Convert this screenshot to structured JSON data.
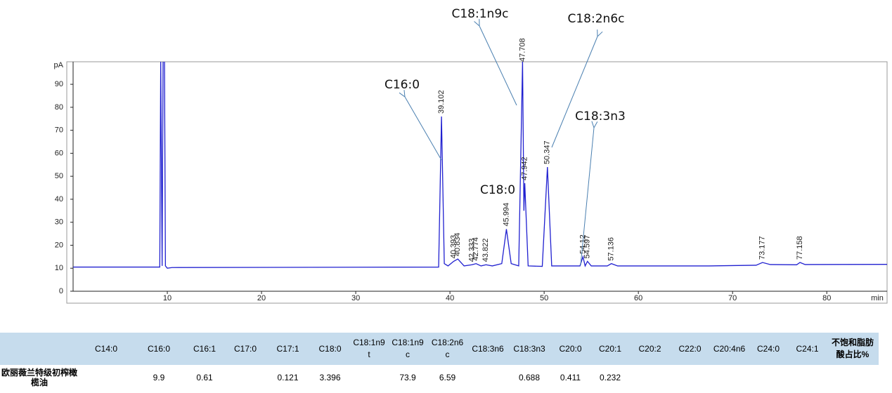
{
  "chart_data": {
    "type": "line",
    "x_unit": "min",
    "y_unit": "pA",
    "xlim": [
      0,
      86.4
    ],
    "ylim": [
      -5.2,
      99.8
    ],
    "xticks": [
      10,
      20,
      30,
      40,
      50,
      60,
      70,
      80
    ],
    "yticks": [
      0,
      10,
      20,
      30,
      40,
      50,
      60,
      70,
      80,
      90
    ],
    "series": [
      {
        "color": "#2020d0",
        "x": [
          0,
          9.2,
          9.3,
          9.45,
          9.55,
          9.7,
          9.8,
          10,
          10.5,
          38.8,
          39.102,
          39.4,
          39.8,
          40.393,
          40.834,
          41.5,
          42.333,
          42.774,
          43.3,
          43.822,
          44.5,
          45.5,
          45.994,
          46.5,
          47.3,
          47.708,
          47.85,
          47.942,
          48.3,
          49.8,
          50.347,
          50.8,
          53.8,
          54.12,
          54.35,
          54.597,
          55,
          56.7,
          57.136,
          57.8,
          67.5,
          72.5,
          73.177,
          74,
          76.8,
          77.158,
          77.7,
          88
        ],
        "values": [
          10.5,
          10.5,
          100,
          11,
          100,
          100,
          11,
          10,
          10.3,
          10.5,
          76,
          12,
          11,
          13,
          14,
          11,
          11.5,
          12,
          11,
          11.5,
          11,
          12,
          27,
          12,
          11,
          100,
          35,
          47,
          11,
          10.8,
          54,
          11,
          11,
          15,
          11,
          13,
          11,
          11,
          12,
          11,
          11,
          11.3,
          12.5,
          11.6,
          11.5,
          12.5,
          11.6,
          11.7
        ]
      }
    ],
    "peak_labels": [
      39.102,
      40.393,
      40.834,
      42.333,
      42.774,
      43.822,
      45.994,
      47.708,
      47.942,
      50.347,
      54.12,
      54.597,
      57.136,
      73.177,
      77.158
    ],
    "annotations": [
      {
        "text": "C16:0"
      },
      {
        "text": "C18:1n9c"
      },
      {
        "text": "C18:2n6c"
      },
      {
        "text": "C18:0"
      },
      {
        "text": "C18:3n3"
      }
    ]
  },
  "table": {
    "header": [
      null,
      "C14:0",
      "C16:0",
      "C16:1",
      "C17:0",
      "C17:1",
      "C18:0",
      "C18:1n9t",
      "C18:1n9c",
      "C18:2n6c",
      "C18:3n6",
      "C18:3n3",
      "C20:0",
      "C20:1",
      "C20:2",
      "C22:0",
      "C20:4n6",
      "C24:0",
      "C24:1",
      "不饱和脂肪酸占比%"
    ],
    "rows": [
      [
        "欧丽薇兰特级初榨橄榄油",
        null,
        "9.9",
        "0.61",
        null,
        "0.121",
        "3.396",
        null,
        "73.9",
        "6.59",
        null,
        "0.688",
        "0.411",
        "0.232",
        null,
        null,
        null,
        null,
        null,
        null
      ]
    ]
  }
}
